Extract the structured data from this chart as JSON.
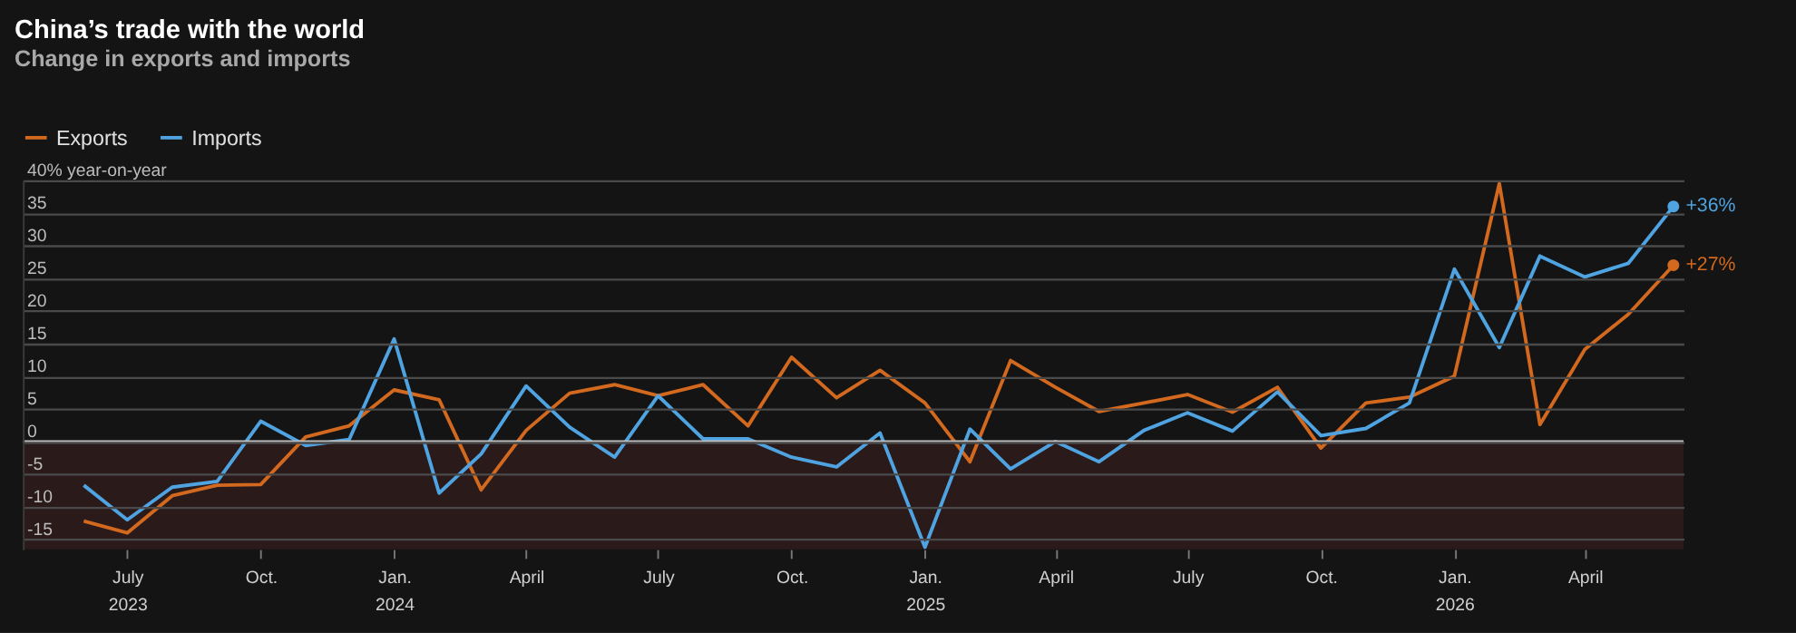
{
  "chart_data": {
    "type": "line",
    "title": "China’s trade with the world",
    "subtitle": "Change in exports and imports",
    "x": [
      "2023-06",
      "2023-07",
      "2023-08",
      "2023-09",
      "2023-10",
      "2023-11",
      "2023-12",
      "2024-01",
      "2024-02",
      "2024-03",
      "2024-04",
      "2024-05",
      "2024-06",
      "2024-07",
      "2024-08",
      "2024-09",
      "2024-10",
      "2024-11",
      "2024-12",
      "2025-01",
      "2025-02",
      "2025-03",
      "2025-04",
      "2025-05",
      "2025-06",
      "2025-07",
      "2025-08",
      "2025-09",
      "2025-10",
      "2025-11",
      "2025-12",
      "2026-01",
      "2026-02",
      "2026-03",
      "2026-04",
      "2026-05",
      "2026-06"
    ],
    "series": [
      {
        "name": "Exports",
        "color": "#d2691e",
        "values": [
          -12.2,
          -14,
          -8.3,
          -6.7,
          -6.6,
          0.7,
          2.4,
          7.9,
          6.4,
          -7.4,
          1.7,
          7.4,
          8.7,
          7.0,
          8.7,
          2.4,
          12.9,
          6.7,
          10.9,
          5.9,
          -3.1,
          12.4,
          8.3,
          4.6,
          5.9,
          7.2,
          4.5,
          8.3,
          -1.0,
          5.9,
          6.8,
          10.0,
          39.5,
          2.6,
          14.1,
          19.5,
          27
        ]
      },
      {
        "name": "Imports",
        "color": "#4ea3e0",
        "values": [
          -6.7,
          -12.0,
          -7.0,
          -6.1,
          3.1,
          -0.6,
          0.3,
          15.7,
          -7.9,
          -1.9,
          8.5,
          2.2,
          -2.4,
          7.0,
          0.4,
          0.4,
          -2.4,
          -3.9,
          1.3,
          -16.2,
          1.9,
          -4.2,
          0,
          -3.1,
          1.7,
          4.4,
          1.6,
          7.6,
          0.9,
          2.0,
          5.9,
          26.4,
          14.4,
          28.4,
          25.2,
          27.3,
          36
        ]
      }
    ],
    "xlim": [
      "2023-04-20",
      "2026-06-08"
    ],
    "xticks": [
      {
        "value": "2023-07",
        "label": "July 2023"
      },
      {
        "value": "2023-10",
        "label": "Oct."
      },
      {
        "value": "2024-01",
        "label": "Jan. 2024"
      },
      {
        "value": "2024-04",
        "label": "April"
      },
      {
        "value": "2024-07",
        "label": "July"
      },
      {
        "value": "2024-10",
        "label": "Oct."
      },
      {
        "value": "2025-01",
        "label": "Jan. 2025"
      },
      {
        "value": "2025-04",
        "label": "April"
      },
      {
        "value": "2025-07",
        "label": "July"
      },
      {
        "value": "2025-10",
        "label": "Oct."
      },
      {
        "value": "2026-01",
        "label": "Jan. 2026"
      },
      {
        "value": "2026-04",
        "label": "April"
      }
    ],
    "ylim": [
      -16.5,
      40
    ],
    "yticks": [
      -15,
      -10,
      -5,
      0,
      5,
      10,
      15,
      20,
      25,
      30,
      35,
      {
        "value": 40,
        "label": "40% year-on-year"
      }
    ],
    "grid": "y",
    "legend": "top left",
    "marker": "none",
    "line_style": "solid",
    "bands": [
      {
        "axis": "y",
        "from": -16.5,
        "to": 0,
        "color": "#2a1a1a"
      }
    ],
    "ref_lines": [
      {
        "axis": "y",
        "value": 0,
        "color": "#bdbdbd"
      }
    ],
    "annotations": [
      {
        "text": "+36%",
        "x": "2026-06",
        "y": 36
      },
      {
        "text": "+27%",
        "x": "2026-06",
        "y": 27
      }
    ]
  }
}
